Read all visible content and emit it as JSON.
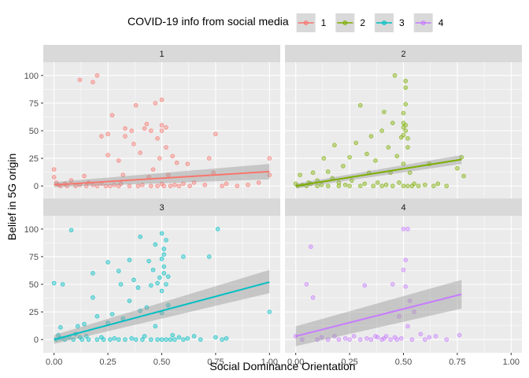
{
  "chart_data": {
    "type": "scatter",
    "facet_variable": "COVID-19 info from social media",
    "xlabel": "Social Dominance Orientation",
    "ylabel": "Belief in 5G origin",
    "xlim": [
      -0.05,
      1.05
    ],
    "ylim": [
      -12,
      112
    ],
    "x_ticks": [
      0,
      0.25,
      0.5,
      0.75,
      1
    ],
    "x_tick_labels": [
      "0.00",
      "0.25",
      "0.50",
      "0.75",
      "1.00"
    ],
    "y_ticks": [
      0,
      25,
      50,
      75,
      100
    ],
    "y_tick_labels": [
      "0",
      "25",
      "50",
      "75",
      "100"
    ],
    "grid": true,
    "legend": {
      "title": "COVID-19 info from social media",
      "position": "top",
      "entries": [
        {
          "label": "1",
          "color": "#F8766D"
        },
        {
          "label": "2",
          "color": "#7CAE00"
        },
        {
          "label": "3",
          "color": "#00BFC4"
        },
        {
          "label": "4",
          "color": "#C77CFF"
        }
      ]
    },
    "panels": [
      {
        "label": "1",
        "color": "#F8766D",
        "fit": {
          "x": [
            0,
            1
          ],
          "y": [
            1,
            13
          ],
          "band": [
            [
              -1,
              3.5
            ],
            [
              6,
              20
            ]
          ]
        },
        "points": [
          [
            0.0,
            15
          ],
          [
            0.0,
            8
          ],
          [
            0.01,
            3
          ],
          [
            0.02,
            1
          ],
          [
            0.03,
            0
          ],
          [
            0.05,
            2
          ],
          [
            0.06,
            0
          ],
          [
            0.08,
            5
          ],
          [
            0.1,
            0
          ],
          [
            0.12,
            96
          ],
          [
            0.12,
            1
          ],
          [
            0.14,
            9
          ],
          [
            0.15,
            0
          ],
          [
            0.16,
            3
          ],
          [
            0.18,
            1
          ],
          [
            0.18,
            94
          ],
          [
            0.2,
            100
          ],
          [
            0.2,
            0
          ],
          [
            0.22,
            45
          ],
          [
            0.22,
            2
          ],
          [
            0.24,
            0
          ],
          [
            0.25,
            47
          ],
          [
            0.25,
            28
          ],
          [
            0.26,
            0
          ],
          [
            0.27,
            64
          ],
          [
            0.28,
            1
          ],
          [
            0.3,
            0
          ],
          [
            0.3,
            23
          ],
          [
            0.31,
            2
          ],
          [
            0.32,
            10
          ],
          [
            0.33,
            45
          ],
          [
            0.33,
            52
          ],
          [
            0.35,
            0
          ],
          [
            0.36,
            50
          ],
          [
            0.37,
            38
          ],
          [
            0.38,
            73
          ],
          [
            0.39,
            0
          ],
          [
            0.4,
            30
          ],
          [
            0.41,
            1
          ],
          [
            0.42,
            52
          ],
          [
            0.43,
            56
          ],
          [
            0.44,
            8
          ],
          [
            0.45,
            50
          ],
          [
            0.45,
            0
          ],
          [
            0.46,
            15
          ],
          [
            0.47,
            75
          ],
          [
            0.48,
            0
          ],
          [
            0.48,
            43
          ],
          [
            0.49,
            25
          ],
          [
            0.5,
            55
          ],
          [
            0.5,
            50
          ],
          [
            0.5,
            2
          ],
          [
            0.5,
            78
          ],
          [
            0.51,
            0
          ],
          [
            0.52,
            35
          ],
          [
            0.52,
            53
          ],
          [
            0.53,
            10
          ],
          [
            0.54,
            0
          ],
          [
            0.55,
            27
          ],
          [
            0.56,
            1
          ],
          [
            0.57,
            21
          ],
          [
            0.58,
            0
          ],
          [
            0.6,
            2
          ],
          [
            0.62,
            20
          ],
          [
            0.63,
            0
          ],
          [
            0.65,
            3
          ],
          [
            0.7,
            1
          ],
          [
            0.72,
            25
          ],
          [
            0.74,
            12
          ],
          [
            0.75,
            47
          ],
          [
            0.78,
            0
          ],
          [
            0.8,
            2
          ],
          [
            0.85,
            0
          ],
          [
            0.9,
            1
          ],
          [
            0.95,
            3
          ],
          [
            1.0,
            10
          ],
          [
            1.0,
            25
          ]
        ]
      },
      {
        "label": "2",
        "color": "#7CAE00",
        "fit": {
          "x": [
            0,
            0.77
          ],
          "y": [
            0,
            24
          ],
          "band": [
            [
              -2,
              2
            ],
            [
              20,
              28
            ]
          ]
        },
        "points": [
          [
            0.0,
            2
          ],
          [
            0.01,
            0
          ],
          [
            0.02,
            10
          ],
          [
            0.03,
            1
          ],
          [
            0.05,
            0
          ],
          [
            0.06,
            3
          ],
          [
            0.07,
            2
          ],
          [
            0.08,
            12
          ],
          [
            0.1,
            0
          ],
          [
            0.1,
            5
          ],
          [
            0.12,
            1
          ],
          [
            0.13,
            25
          ],
          [
            0.15,
            0
          ],
          [
            0.15,
            13
          ],
          [
            0.17,
            7
          ],
          [
            0.18,
            37
          ],
          [
            0.2,
            0
          ],
          [
            0.2,
            3
          ],
          [
            0.22,
            18
          ],
          [
            0.23,
            1
          ],
          [
            0.25,
            26
          ],
          [
            0.25,
            0
          ],
          [
            0.26,
            5
          ],
          [
            0.28,
            39
          ],
          [
            0.3,
            73
          ],
          [
            0.3,
            0
          ],
          [
            0.32,
            2
          ],
          [
            0.33,
            29
          ],
          [
            0.34,
            12
          ],
          [
            0.35,
            45
          ],
          [
            0.36,
            0
          ],
          [
            0.37,
            23
          ],
          [
            0.38,
            3
          ],
          [
            0.4,
            50
          ],
          [
            0.4,
            0
          ],
          [
            0.41,
            67
          ],
          [
            0.42,
            1
          ],
          [
            0.43,
            35
          ],
          [
            0.44,
            12
          ],
          [
            0.45,
            57
          ],
          [
            0.45,
            0
          ],
          [
            0.46,
            100
          ],
          [
            0.47,
            27
          ],
          [
            0.48,
            3
          ],
          [
            0.49,
            44
          ],
          [
            0.5,
            0
          ],
          [
            0.5,
            46
          ],
          [
            0.5,
            53
          ],
          [
            0.5,
            66
          ],
          [
            0.5,
            20
          ],
          [
            0.5,
            57
          ],
          [
            0.51,
            50
          ],
          [
            0.51,
            55
          ],
          [
            0.51,
            95
          ],
          [
            0.51,
            89
          ],
          [
            0.51,
            74
          ],
          [
            0.52,
            43
          ],
          [
            0.52,
            0
          ],
          [
            0.52,
            35
          ],
          [
            0.53,
            12
          ],
          [
            0.54,
            0
          ],
          [
            0.55,
            2
          ],
          [
            0.57,
            0
          ],
          [
            0.6,
            1
          ],
          [
            0.62,
            20
          ],
          [
            0.64,
            0
          ],
          [
            0.66,
            2
          ],
          [
            0.7,
            0
          ],
          [
            0.75,
            16
          ],
          [
            0.77,
            26
          ],
          [
            0.78,
            9
          ]
        ]
      },
      {
        "label": "3",
        "color": "#00BFC4",
        "fit": {
          "x": [
            0,
            1
          ],
          "y": [
            0,
            52
          ],
          "band": [
            [
              -4,
              4
            ],
            [
              42,
              63
            ]
          ]
        },
        "points": [
          [
            0.0,
            51
          ],
          [
            0.01,
            0
          ],
          [
            0.02,
            4
          ],
          [
            0.03,
            1
          ],
          [
            0.03,
            11
          ],
          [
            0.04,
            50
          ],
          [
            0.05,
            0
          ],
          [
            0.07,
            2
          ],
          [
            0.08,
            99
          ],
          [
            0.09,
            0
          ],
          [
            0.1,
            5
          ],
          [
            0.11,
            12
          ],
          [
            0.12,
            2
          ],
          [
            0.13,
            0
          ],
          [
            0.14,
            14
          ],
          [
            0.15,
            3
          ],
          [
            0.16,
            0
          ],
          [
            0.18,
            38
          ],
          [
            0.18,
            60
          ],
          [
            0.2,
            0
          ],
          [
            0.2,
            21
          ],
          [
            0.22,
            2
          ],
          [
            0.23,
            0
          ],
          [
            0.25,
            15
          ],
          [
            0.25,
            70
          ],
          [
            0.26,
            0
          ],
          [
            0.27,
            23
          ],
          [
            0.28,
            1
          ],
          [
            0.3,
            0
          ],
          [
            0.3,
            62
          ],
          [
            0.31,
            50
          ],
          [
            0.32,
            19
          ],
          [
            0.33,
            0
          ],
          [
            0.35,
            35
          ],
          [
            0.35,
            72
          ],
          [
            0.36,
            1
          ],
          [
            0.37,
            54
          ],
          [
            0.38,
            0
          ],
          [
            0.39,
            47
          ],
          [
            0.4,
            93
          ],
          [
            0.4,
            26
          ],
          [
            0.41,
            0
          ],
          [
            0.42,
            3
          ],
          [
            0.43,
            29
          ],
          [
            0.44,
            71
          ],
          [
            0.45,
            0
          ],
          [
            0.45,
            49
          ],
          [
            0.46,
            63
          ],
          [
            0.47,
            86
          ],
          [
            0.47,
            12
          ],
          [
            0.48,
            0
          ],
          [
            0.48,
            51
          ],
          [
            0.49,
            56
          ],
          [
            0.5,
            44
          ],
          [
            0.5,
            96
          ],
          [
            0.5,
            73
          ],
          [
            0.5,
            0
          ],
          [
            0.5,
            24
          ],
          [
            0.51,
            60
          ],
          [
            0.51,
            77
          ],
          [
            0.51,
            82
          ],
          [
            0.51,
            66
          ],
          [
            0.52,
            50
          ],
          [
            0.52,
            0
          ],
          [
            0.52,
            90
          ],
          [
            0.53,
            31
          ],
          [
            0.53,
            57
          ],
          [
            0.54,
            0
          ],
          [
            0.55,
            4
          ],
          [
            0.56,
            0
          ],
          [
            0.58,
            2
          ],
          [
            0.6,
            75
          ],
          [
            0.6,
            0
          ],
          [
            0.62,
            1
          ],
          [
            0.65,
            3
          ],
          [
            0.68,
            0
          ],
          [
            0.72,
            75
          ],
          [
            0.75,
            2
          ],
          [
            0.76,
            100
          ],
          [
            0.78,
            0
          ],
          [
            0.8,
            1
          ],
          [
            1.0,
            25
          ]
        ]
      },
      {
        "label": "4",
        "color": "#C77CFF",
        "fit": {
          "x": [
            0,
            0.77
          ],
          "y": [
            3,
            41
          ],
          "band": [
            [
              -6,
              12
            ],
            [
              28,
              54
            ]
          ]
        },
        "points": [
          [
            0.0,
            3
          ],
          [
            0.03,
            0
          ],
          [
            0.05,
            50
          ],
          [
            0.07,
            84
          ],
          [
            0.08,
            38
          ],
          [
            0.1,
            0
          ],
          [
            0.12,
            2
          ],
          [
            0.15,
            0
          ],
          [
            0.18,
            3
          ],
          [
            0.2,
            0
          ],
          [
            0.23,
            1
          ],
          [
            0.25,
            0
          ],
          [
            0.27,
            3
          ],
          [
            0.3,
            0
          ],
          [
            0.32,
            49
          ],
          [
            0.33,
            1
          ],
          [
            0.35,
            0
          ],
          [
            0.37,
            3
          ],
          [
            0.38,
            2
          ],
          [
            0.4,
            0
          ],
          [
            0.41,
            1
          ],
          [
            0.42,
            3
          ],
          [
            0.44,
            0
          ],
          [
            0.45,
            50
          ],
          [
            0.46,
            2
          ],
          [
            0.47,
            0
          ],
          [
            0.48,
            21
          ],
          [
            0.49,
            1
          ],
          [
            0.5,
            100
          ],
          [
            0.5,
            63
          ],
          [
            0.51,
            48
          ],
          [
            0.51,
            72
          ],
          [
            0.52,
            100
          ],
          [
            0.52,
            12
          ],
          [
            0.53,
            35
          ],
          [
            0.54,
            0
          ],
          [
            0.55,
            25
          ],
          [
            0.58,
            5
          ],
          [
            0.6,
            0
          ],
          [
            0.62,
            2
          ],
          [
            0.65,
            3
          ],
          [
            0.7,
            0
          ],
          [
            0.76,
            4
          ]
        ]
      }
    ]
  }
}
